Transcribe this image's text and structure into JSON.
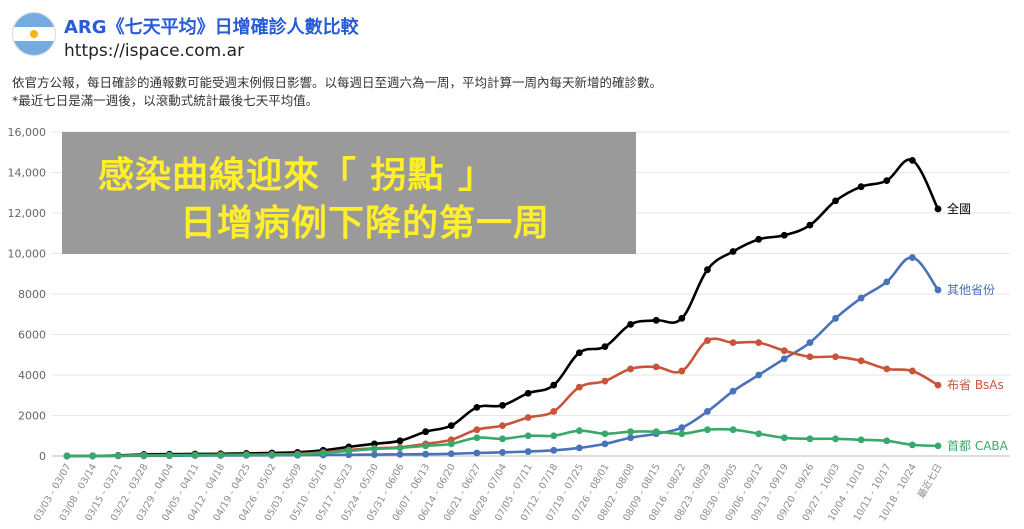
{
  "header": {
    "title": "ARG《七天平均》日增確診人數比較",
    "url": "https://ispace.com.ar",
    "desc_line1": "依官方公報，每日確診的通報數可能受週末例假日影響。以每週日至週六為一周，平均計算一周內每天新增的確診數。",
    "desc_line2": "*最近七日是滿一週後，以滾動式統計最後七天平均值。"
  },
  "overlay": {
    "line1": "感染曲線迎來「 拐點 」",
    "line2": "日增病例下降的第一周"
  },
  "colors": {
    "national": "#000000",
    "other": "#4a72b8",
    "bsas": "#c8553a",
    "caba": "#3aa86b",
    "overlay_bg": "#9a9a9a",
    "overlay_text": "#ffef2a"
  },
  "chart_data": {
    "type": "line",
    "ylim": [
      0,
      16000
    ],
    "yticks": [
      "0",
      "2000",
      "4000",
      "6000",
      "8000",
      "10,000",
      "12,000",
      "14,000",
      "16,000"
    ],
    "grid": true,
    "legend": "end-of-line labels",
    "categories": [
      "03/03 - 03/07",
      "03/08 - 03/14",
      "03/15 - 03/21",
      "03/22 - 03/28",
      "03/29 - 04/04",
      "04/05 - 04/11",
      "04/12 - 04/18",
      "04/19 - 04/25",
      "04/26 - 05/02",
      "05/03 - 05/09",
      "05/10 - 05/16",
      "05/17 - 05/23",
      "05/24 - 05/30",
      "05/31 - 06/06",
      "06/07 - 06/13",
      "06/14 - 06/20",
      "06/21 - 06/27",
      "06/28 - 07/04",
      "07/05 - 07/11",
      "07/12 - 07/18",
      "07/19 - 07/25",
      "07/26 - 08/01",
      "08/02 - 08/08",
      "08/09 - 08/15",
      "08/16 - 08/22",
      "08/23 - 08/29",
      "08/30 - 09/05",
      "09/06 - 09/12",
      "09/13 - 09/19",
      "09/20 - 09/26",
      "09/27 - 10/03",
      "10/04 - 10/10",
      "10/11 - 10/17",
      "10/18 - 10/24",
      "最近七日"
    ],
    "series": [
      {
        "name": "全國",
        "color": "#000000",
        "values": [
          0,
          10,
          30,
          80,
          90,
          100,
          110,
          130,
          150,
          180,
          280,
          450,
          600,
          750,
          1200,
          1500,
          2400,
          2500,
          3100,
          3500,
          5100,
          5400,
          6500,
          6700,
          6800,
          9200,
          10100,
          10700,
          10900,
          11400,
          12600,
          13300,
          13600,
          14600,
          12200
        ]
      },
      {
        "name": "其他省份",
        "color": "#4a72b8",
        "values": [
          0,
          0,
          5,
          10,
          15,
          20,
          25,
          30,
          35,
          40,
          50,
          60,
          70,
          80,
          90,
          110,
          150,
          180,
          220,
          280,
          400,
          600,
          900,
          1100,
          1400,
          2200,
          3200,
          4000,
          4800,
          5600,
          6800,
          7800,
          8600,
          9800,
          8200
        ]
      },
      {
        "name": "布省 BsAs",
        "color": "#c8553a",
        "values": [
          0,
          5,
          10,
          30,
          40,
          50,
          60,
          70,
          80,
          100,
          180,
          300,
          380,
          430,
          600,
          800,
          1300,
          1500,
          1900,
          2200,
          3400,
          3700,
          4300,
          4400,
          4200,
          5700,
          5600,
          5600,
          5200,
          4900,
          4900,
          4700,
          4300,
          4200,
          3500
        ]
      },
      {
        "name": "首都 CABA",
        "color": "#3aa86b",
        "values": [
          0,
          5,
          15,
          40,
          40,
          45,
          50,
          55,
          60,
          80,
          150,
          250,
          350,
          400,
          500,
          600,
          900,
          850,
          1000,
          1000,
          1250,
          1100,
          1200,
          1200,
          1100,
          1300,
          1300,
          1100,
          900,
          850,
          850,
          800,
          750,
          550,
          500
        ]
      }
    ]
  }
}
